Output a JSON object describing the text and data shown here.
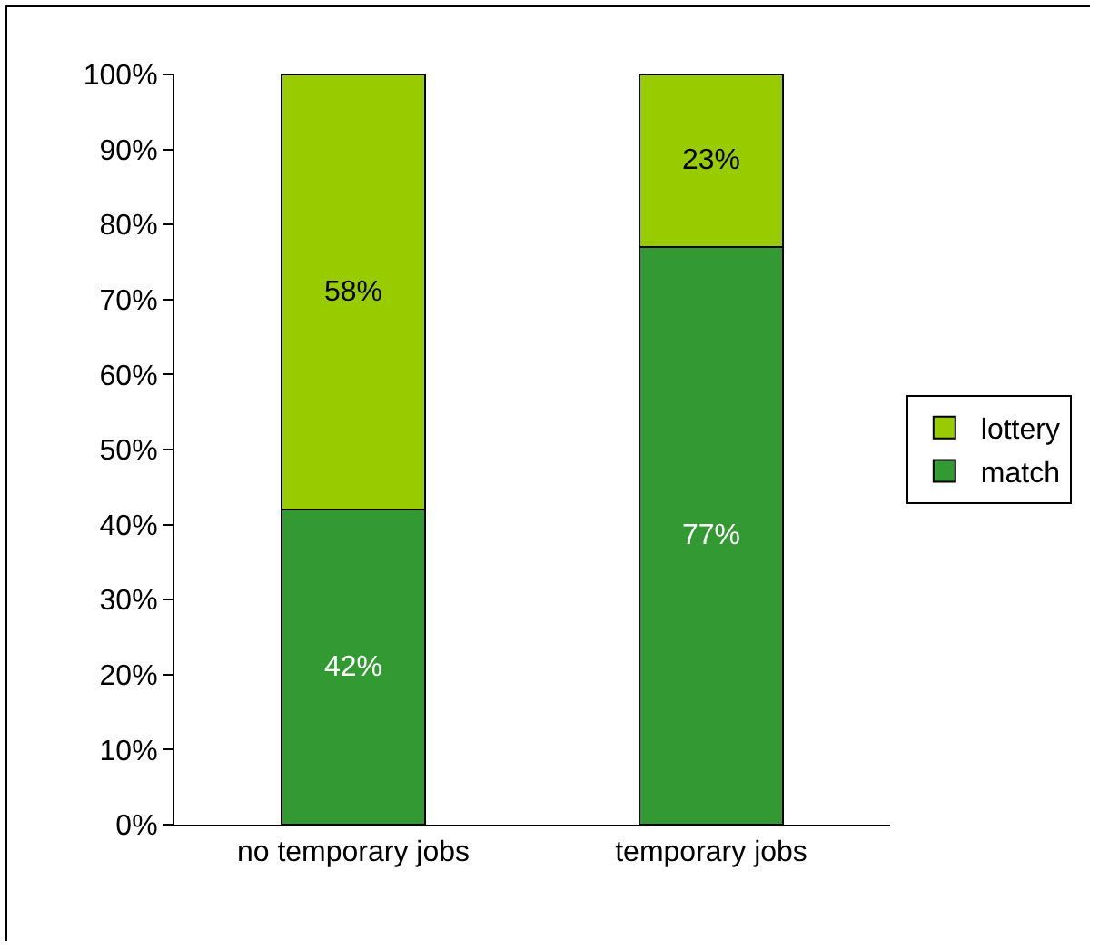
{
  "chart_data": {
    "type": "bar",
    "stacked": true,
    "categories": [
      "no temporary jobs",
      "temporary jobs"
    ],
    "series": [
      {
        "name": "match",
        "color": "#339933",
        "values": [
          42,
          77
        ],
        "value_labels": [
          "42%",
          "77%"
        ]
      },
      {
        "name": "lottery",
        "color": "#99cc00",
        "values": [
          58,
          23
        ],
        "value_labels": [
          "58%",
          "23%"
        ]
      }
    ],
    "ylim": [
      0,
      100
    ],
    "yticks": [
      {
        "value": 0,
        "label": "0%"
      },
      {
        "value": 10,
        "label": "10%"
      },
      {
        "value": 20,
        "label": "20%"
      },
      {
        "value": 30,
        "label": "30%"
      },
      {
        "value": 40,
        "label": "40%"
      },
      {
        "value": 50,
        "label": "50%"
      },
      {
        "value": 60,
        "label": "60%"
      },
      {
        "value": 70,
        "label": "70%"
      },
      {
        "value": 80,
        "label": "80%"
      },
      {
        "value": 90,
        "label": "90%"
      },
      {
        "value": 100,
        "label": "100%"
      }
    ],
    "grid": false,
    "legend": "right"
  }
}
